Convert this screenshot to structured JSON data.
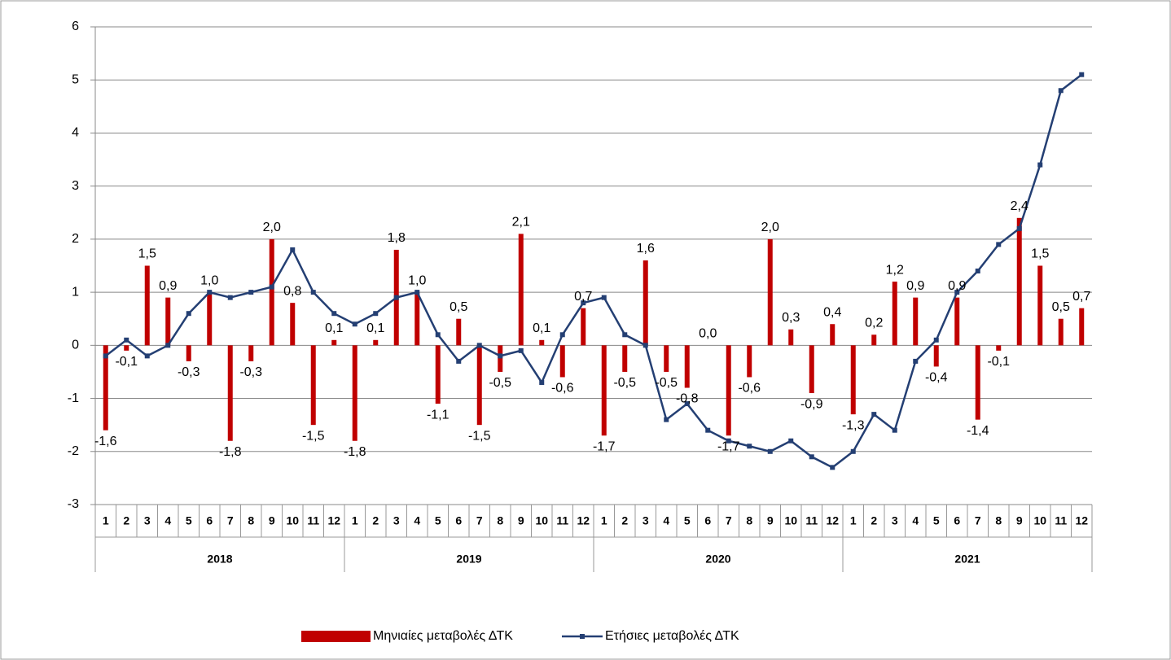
{
  "chart_data": {
    "type": "bar_line",
    "categories": [
      "1",
      "2",
      "3",
      "4",
      "5",
      "6",
      "7",
      "8",
      "9",
      "10",
      "11",
      "12",
      "1",
      "2",
      "3",
      "4",
      "5",
      "6",
      "7",
      "8",
      "9",
      "10",
      "11",
      "12",
      "1",
      "2",
      "3",
      "4",
      "5",
      "6",
      "7",
      "8",
      "9",
      "10",
      "11",
      "12",
      "1",
      "2",
      "3",
      "4",
      "5",
      "6",
      "7",
      "8",
      "9",
      "10",
      "11",
      "12"
    ],
    "groups": [
      "2018",
      "2019",
      "2020",
      "2021"
    ],
    "series": [
      {
        "name": "Μηνιαίες μεταβολές ΔΤΚ",
        "type": "bar",
        "color": "#c00000",
        "values": [
          -1.6,
          -0.1,
          1.5,
          0.9,
          -0.3,
          1.0,
          -1.8,
          -0.3,
          2.0,
          0.8,
          -1.5,
          0.1,
          -1.8,
          0.1,
          1.8,
          1.0,
          -1.1,
          0.5,
          -1.5,
          -0.5,
          2.1,
          0.1,
          -0.6,
          0.7,
          -1.7,
          -0.5,
          1.6,
          -0.5,
          -0.8,
          0.0,
          -1.7,
          -0.6,
          2.0,
          0.3,
          -0.9,
          0.4,
          -1.3,
          0.2,
          1.2,
          0.9,
          -0.4,
          0.9,
          -1.4,
          -0.1,
          2.4,
          1.5,
          0.5,
          0.7
        ],
        "value_labels": [
          "-1,6",
          "-0,1",
          "1,5",
          "0,9",
          "-0,3",
          "1,0",
          "-1,8",
          "-0,3",
          "2,0",
          "0,8",
          "-1,5",
          "0,1",
          "-1,8",
          "0,1",
          "1,8",
          "1,0",
          "-1,1",
          "0,5",
          "-1,5",
          "-0,5",
          "2,1",
          "0,1",
          "-0,6",
          "0,7",
          "-1,7",
          "-0,5",
          "1,6",
          "-0,5",
          "-0,8",
          "0,0",
          "-1,7",
          "-0,6",
          "2,0",
          "0,3",
          "-0,9",
          "0,4",
          "-1,3",
          "0,2",
          "1,2",
          "0,9",
          "-0,4",
          "0,9",
          "-1,4",
          "-0,1",
          "2,4",
          "1,5",
          "0,5",
          "0,7"
        ]
      },
      {
        "name": "Ετήσιες μεταβολές ΔΤΚ",
        "type": "line",
        "color": "#243f73",
        "values": [
          -0.2,
          0.1,
          -0.2,
          0.0,
          0.6,
          1.0,
          0.9,
          1.0,
          1.1,
          1.8,
          1.0,
          0.6,
          0.4,
          0.6,
          0.9,
          1.0,
          0.2,
          -0.3,
          0.0,
          -0.2,
          -0.1,
          -0.7,
          0.2,
          0.8,
          0.9,
          0.2,
          0.0,
          -1.4,
          -1.1,
          -1.6,
          -1.8,
          -1.9,
          -2.0,
          -1.8,
          -2.1,
          -2.3,
          -2.0,
          -1.3,
          -1.6,
          -0.3,
          0.1,
          1.0,
          1.4,
          1.9,
          2.2,
          3.4,
          4.8,
          5.1
        ]
      }
    ],
    "ylim": [
      -3,
      6
    ],
    "yticks": [
      -3,
      -2,
      -1,
      0,
      1,
      2,
      3,
      4,
      5,
      6
    ],
    "grid": true,
    "legend": "bottom"
  }
}
